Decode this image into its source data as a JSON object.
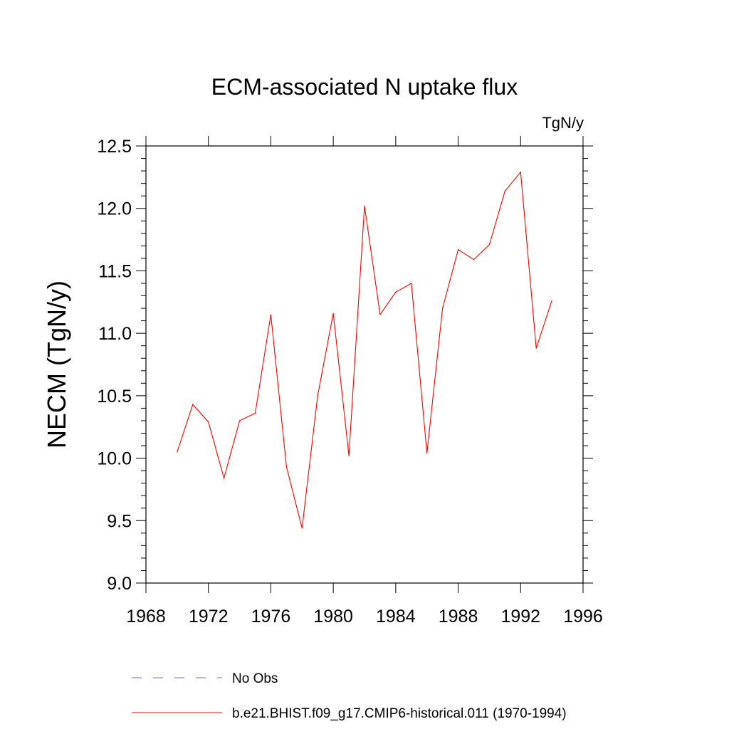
{
  "chart_data": {
    "type": "line",
    "title": "ECM-associated N uptake flux",
    "units_label": "TgN/y",
    "ylabel": "NECM  (TgN/y)",
    "xlabel": "",
    "xlim": [
      1968,
      1996
    ],
    "ylim": [
      9.0,
      12.5
    ],
    "x_ticks": [
      "1968",
      "1972",
      "1976",
      "1980",
      "1984",
      "1988",
      "1992",
      "1996"
    ],
    "y_ticks": [
      "9.0",
      "9.5",
      "10.0",
      "10.5",
      "11.0",
      "11.5",
      "12.0",
      "12.5"
    ],
    "grid": false,
    "legend_position": "bottom",
    "series": [
      {
        "name": "b.e21.BHIST.f09_g17.CMIP6-historical.011 (1970-1994)",
        "color": "#ff0000",
        "style": "solid",
        "x": [
          1970,
          1971,
          1972,
          1973,
          1974,
          1975,
          1976,
          1977,
          1978,
          1979,
          1980,
          1981,
          1982,
          1983,
          1984,
          1985,
          1986,
          1987,
          1988,
          1989,
          1990,
          1991,
          1992,
          1993,
          1994
        ],
        "y": [
          10.05,
          10.43,
          10.29,
          9.84,
          10.3,
          10.36,
          11.15,
          9.93,
          9.44,
          10.5,
          11.16,
          10.02,
          12.02,
          11.15,
          11.33,
          11.4,
          10.04,
          11.2,
          11.67,
          11.59,
          11.71,
          12.14,
          12.29,
          10.88,
          11.26
        ]
      }
    ],
    "legend": [
      {
        "label": "No Obs",
        "color": "#6e6ec0",
        "style": "dashed"
      },
      {
        "label": "b.e21.BHIST.f09_g17.CMIP6-historical.011 (1970-1994)",
        "color": "#ff0000",
        "style": "solid"
      }
    ]
  }
}
